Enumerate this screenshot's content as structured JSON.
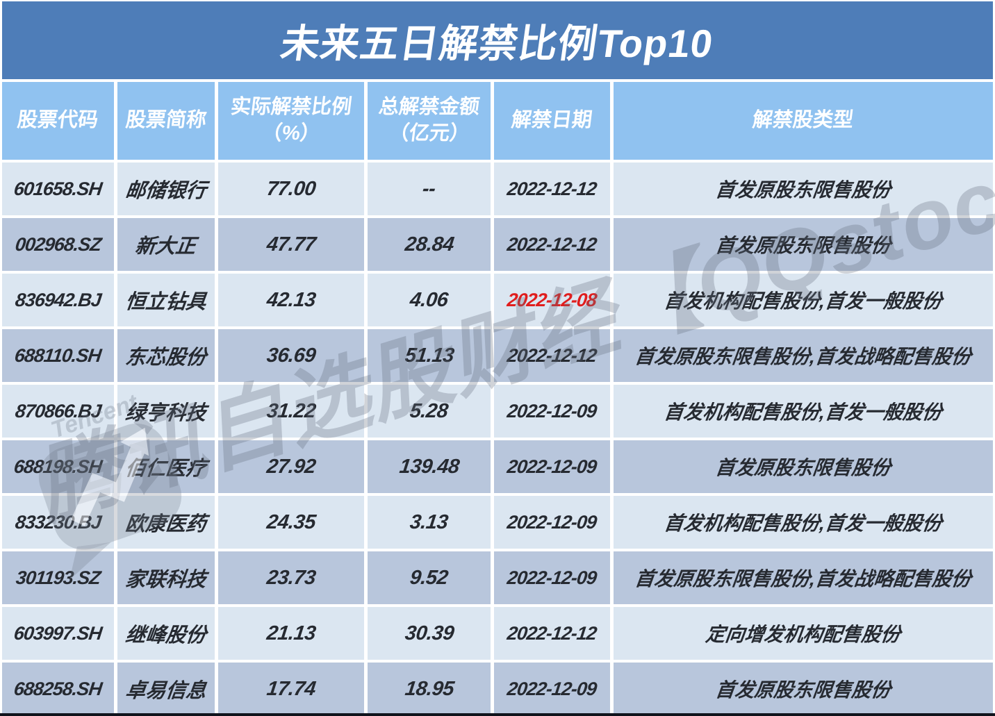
{
  "title": "未来五日解禁比例Top10",
  "header": {
    "columns": [
      {
        "label": "股票代码",
        "sub": ""
      },
      {
        "label": "股票简称",
        "sub": ""
      },
      {
        "label": "实际解禁比例",
        "sub": "（%）"
      },
      {
        "label": "总解禁金额",
        "sub": "（亿元）"
      },
      {
        "label": "解禁日期",
        "sub": ""
      },
      {
        "label": "解禁股类型",
        "sub": ""
      }
    ]
  },
  "chart_data": {
    "type": "table",
    "title": "未来五日解禁比例Top10",
    "columns": [
      "股票代码",
      "股票简称",
      "实际解禁比例（%）",
      "总解禁金额（亿元）",
      "解禁日期",
      "解禁股类型"
    ],
    "rows": [
      {
        "code": "601658.SH",
        "name": "邮储银行",
        "ratio": "77.00",
        "amount": "--",
        "date": "2022-12-12",
        "type": "首发原股东限售股份",
        "date_highlight": false
      },
      {
        "code": "002968.SZ",
        "name": "新大正",
        "ratio": "47.77",
        "amount": "28.84",
        "date": "2022-12-12",
        "type": "首发原股东限售股份",
        "date_highlight": false
      },
      {
        "code": "836942.BJ",
        "name": "恒立钻具",
        "ratio": "42.13",
        "amount": "4.06",
        "date": "2022-12-08",
        "type": "首发机构配售股份,首发一般股份",
        "date_highlight": true
      },
      {
        "code": "688110.SH",
        "name": "东芯股份",
        "ratio": "36.69",
        "amount": "51.13",
        "date": "2022-12-12",
        "type": "首发原股东限售股份,首发战略配售股份",
        "date_highlight": false
      },
      {
        "code": "870866.BJ",
        "name": "绿亨科技",
        "ratio": "31.22",
        "amount": "5.28",
        "date": "2022-12-09",
        "type": "首发机构配售股份,首发一般股份",
        "date_highlight": false
      },
      {
        "code": "688198.SH",
        "name": "佰仁医疗",
        "ratio": "27.92",
        "amount": "139.48",
        "date": "2022-12-09",
        "type": "首发原股东限售股份",
        "date_highlight": false
      },
      {
        "code": "833230.BJ",
        "name": "欧康医药",
        "ratio": "24.35",
        "amount": "3.13",
        "date": "2022-12-09",
        "type": "首发机构配售股份,首发一般股份",
        "date_highlight": false
      },
      {
        "code": "301193.SZ",
        "name": "家联科技",
        "ratio": "23.73",
        "amount": "9.52",
        "date": "2022-12-09",
        "type": "首发原股东限售股份,首发战略配售股份",
        "date_highlight": false
      },
      {
        "code": "603997.SH",
        "name": "继峰股份",
        "ratio": "21.13",
        "amount": "30.39",
        "date": "2022-12-12",
        "type": "定向增发机构配售股份",
        "date_highlight": false
      },
      {
        "code": "688258.SH",
        "name": "卓易信息",
        "ratio": "17.74",
        "amount": "18.95",
        "date": "2022-12-09",
        "type": "首发原股东限售股份",
        "date_highlight": false
      }
    ]
  },
  "watermark": {
    "text": "腾讯自选股财经【QQstock】",
    "logo_text": "Tencent",
    "logo_icon": "tencent-bubble-logo"
  },
  "colors": {
    "title_bg": "#4E7DB8",
    "header_bg": "#90C2F0",
    "row_light": "#DBE6F1",
    "row_dark": "#B8C6DC",
    "ink": "#262A31",
    "red_date": "#E01E1E"
  }
}
